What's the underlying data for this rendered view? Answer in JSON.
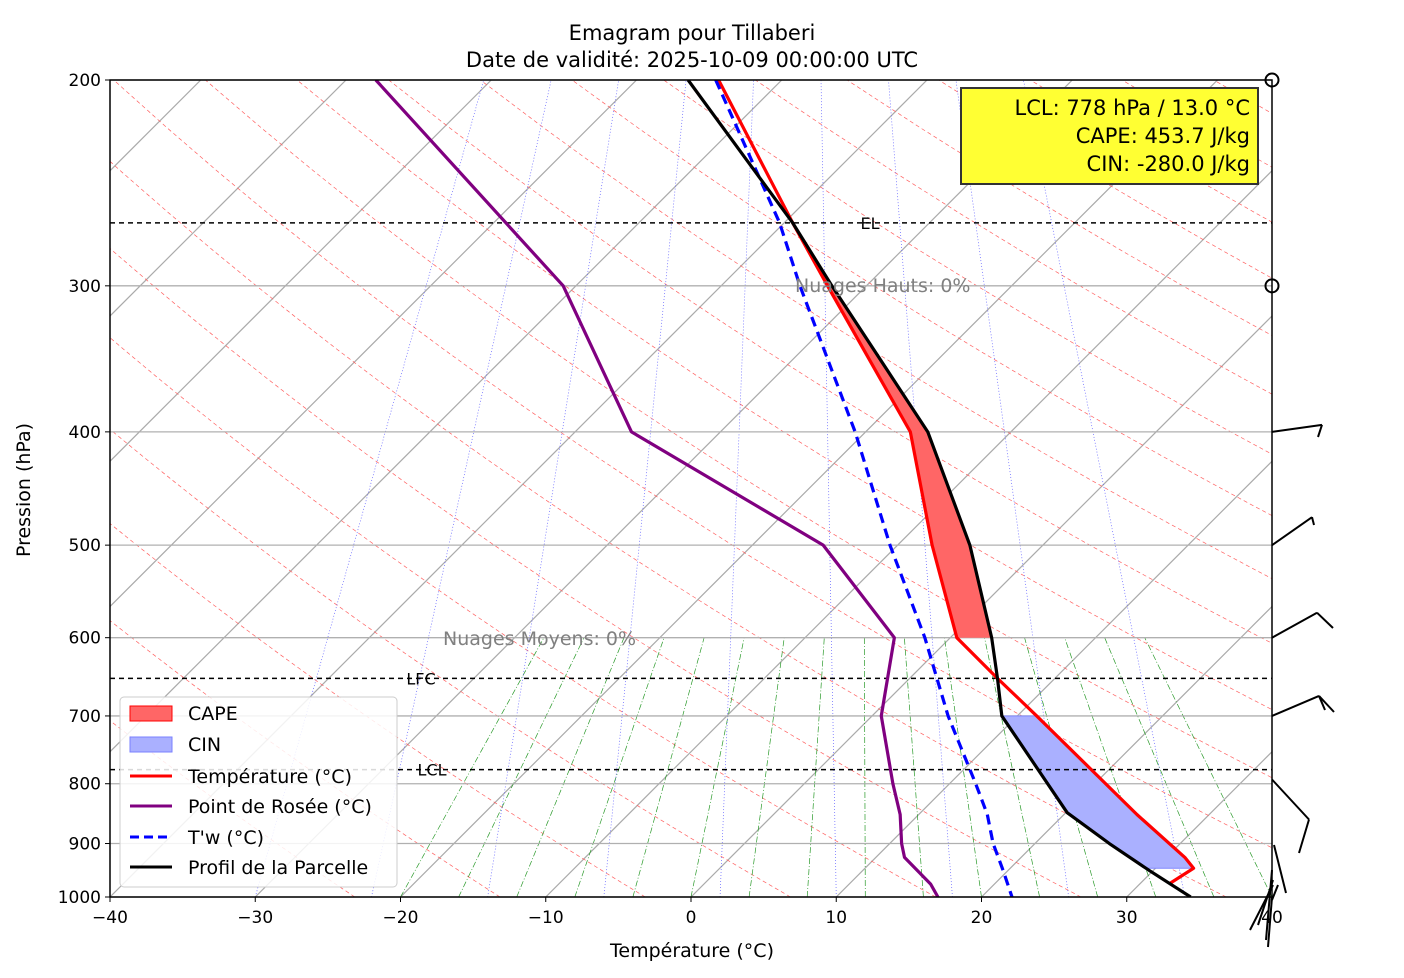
{
  "chart_data": {
    "type": "line",
    "title": "Emagram pour Tillaberi",
    "subtitle": "Date de validité: 2025-10-09 00:00:00 UTC",
    "xlabel": "Température (°C)",
    "ylabel": "Pression (hPa)",
    "xlim": [
      -40,
      40
    ],
    "ylim": [
      1000,
      200
    ],
    "yscale": "log",
    "xticks": [
      "−40",
      "−30",
      "−20",
      "−10",
      "0",
      "10",
      "20",
      "30",
      "40"
    ],
    "xtick_values": [
      -40,
      -30,
      -20,
      -10,
      0,
      10,
      20,
      30,
      40
    ],
    "yticks": [
      "200",
      "300",
      "400",
      "500",
      "600",
      "700",
      "800",
      "900",
      "1000"
    ],
    "ytick_values": [
      200,
      300,
      400,
      500,
      600,
      700,
      800,
      900,
      1000
    ],
    "series": [
      {
        "name": "Température (°C)",
        "color": "#ff0000",
        "style": "solid",
        "p": [
          200,
          265,
          300,
          400,
          500,
          600,
          650,
          700,
          850,
          925,
          945,
          973
        ],
        "t": [
          1.9,
          7.0,
          9.4,
          15.1,
          16.6,
          18.3,
          21.1,
          23.8,
          30.7,
          34.0,
          34.6,
          33.0
        ]
      },
      {
        "name": "Point de Rosée (°C)",
        "color": "#800080",
        "style": "solid",
        "p": [
          200,
          300,
          400,
          500,
          600,
          700,
          800,
          850,
          900,
          925,
          975,
          1000
        ],
        "t": [
          -21.7,
          -8.8,
          -4.1,
          9.1,
          14.0,
          13.1,
          13.9,
          14.4,
          14.5,
          14.7,
          16.5,
          17.0
        ]
      },
      {
        "name": "T'w (°C)",
        "color": "#0000ff",
        "style": "dashed",
        "p": [
          200,
          265,
          300,
          400,
          500,
          600,
          700,
          800,
          850,
          900,
          950,
          1000
        ],
        "t": [
          1.7,
          6.1,
          7.5,
          11.3,
          13.7,
          16.1,
          17.7,
          19.6,
          20.4,
          20.8,
          21.5,
          22.1
        ]
      },
      {
        "name": "Profil de la Parcelle",
        "color": "#000000",
        "style": "solid",
        "p": [
          200,
          265,
          300,
          400,
          500,
          600,
          650,
          700,
          847,
          900,
          950,
          1000
        ],
        "t": [
          -0.2,
          7.0,
          9.7,
          16.3,
          19.2,
          20.7,
          21.1,
          21.4,
          25.9,
          28.8,
          31.6,
          34.4
        ]
      }
    ],
    "fills": [
      {
        "name": "CAPE",
        "color": "#ff6666",
        "p_range": [
          265,
          600
        ]
      },
      {
        "name": "CIN",
        "color": "#aab0ff",
        "p_range": [
          700,
          945
        ]
      }
    ],
    "levels": [
      {
        "label": "EL",
        "p": 265
      },
      {
        "label": "LFC",
        "p": 650
      },
      {
        "label": "LCL",
        "p": 778
      }
    ],
    "annotations": {
      "high_clouds": "Nuages Hauts: 0%",
      "mid_clouds": "Nuages Moyens: 0%"
    },
    "info_box": [
      "LCL: 778 hPa / 13.0 °C",
      "CAPE: 453.7 J/kg",
      "CIN: -280.0 J/kg"
    ],
    "legend": {
      "placement": "lower-left",
      "entries": [
        "CAPE",
        "CIN",
        "Température (°C)",
        "Point de Rosée (°C)",
        "T'w (°C)",
        "Profil de la Parcelle"
      ]
    },
    "wind_levels_hpa": [
      200,
      300,
      400,
      500,
      600,
      700,
      850,
      900,
      950,
      1000
    ]
  }
}
